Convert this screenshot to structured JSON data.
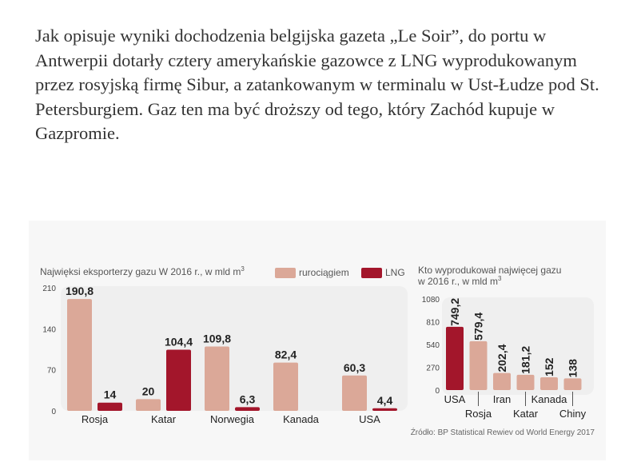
{
  "article": {
    "paragraph": "Jak opisuje wyniki dochodzenia belgijska gazeta „Le Soir”, do portu w Antwerpii dotarły cztery amerykańskie gazowce z LNG wyprodukowanym przez rosyjską firmę Sibur, a zatankowanym w terminalu w Ust-Łudze pod St. Petersburgiem. Gaz ten ma być droższy od tego, który Zachód kupuje w Gazpromie."
  },
  "colors": {
    "pipeline": "#dba898",
    "lng": "#a3162b",
    "panel": "#efefef",
    "gridline": "#cccccc"
  },
  "source": "Źródło: BP Statistical Rewiev od World Energy 2017",
  "chart_data": [
    {
      "type": "bar",
      "title": "Najwięksi eksporterzy gazu W 2016 r., w mld m",
      "title_sup": "3",
      "categories": [
        "Rosja",
        "Katar",
        "Norwegia",
        "Kanada",
        "USA"
      ],
      "series": [
        {
          "name": "rurociągiem",
          "values": [
            190.8,
            20,
            109.8,
            82.4,
            60.3
          ],
          "labels": [
            "190,8",
            "20",
            "109,8",
            "82,4",
            "60,3"
          ]
        },
        {
          "name": "LNG",
          "values": [
            14,
            104.4,
            6.3,
            null,
            4.4
          ],
          "labels": [
            "14",
            "104,4",
            "6,3",
            "",
            "4,4"
          ]
        }
      ],
      "yticks": [
        0,
        70,
        140,
        210
      ],
      "ylim": [
        0,
        210
      ],
      "legend": "top",
      "grid": false
    },
    {
      "type": "bar",
      "title_line1": "Kto wyprodukował najwięcej gazu",
      "title_line2": "w 2016 r., w mld m",
      "title_sup": "3",
      "categories": [
        "USA",
        "Rosja",
        "Iran",
        "Katar",
        "Kanada",
        "Chiny"
      ],
      "values": [
        749.2,
        579.4,
        202.4,
        181.2,
        152,
        138
      ],
      "labels": [
        "749,2",
        "579,4",
        "202,4",
        "181,2",
        "152",
        "138"
      ],
      "highlight_index": 0,
      "yticks": [
        0,
        270,
        540,
        810,
        1080
      ],
      "ylim": [
        0,
        1080
      ],
      "grid": false
    }
  ]
}
